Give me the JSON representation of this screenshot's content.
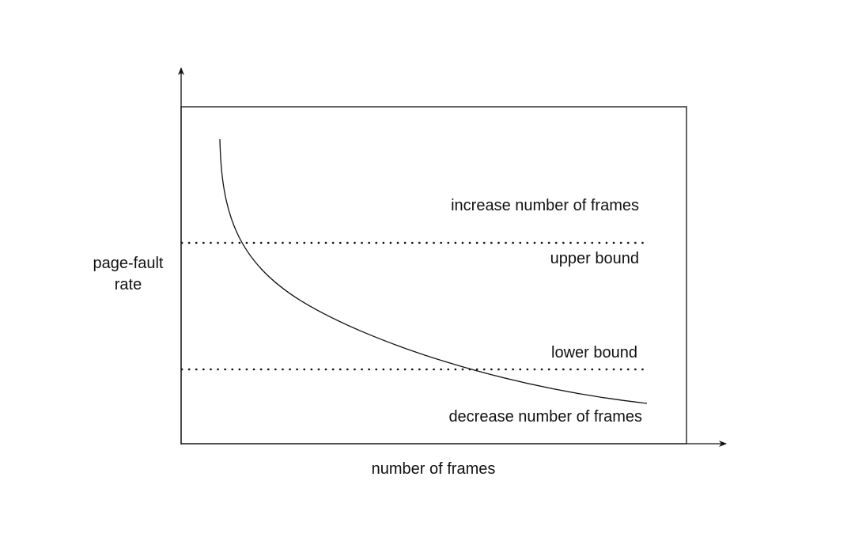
{
  "diagram": {
    "y_axis_label_lines": [
      "page-fault",
      "rate"
    ],
    "x_axis_label": "number of frames",
    "regions": {
      "above_upper": "increase number of frames",
      "upper_bound": "upper bound",
      "lower_bound": "lower bound",
      "below_lower": "decrease number of frames"
    },
    "colors": {
      "line": "#111111",
      "background": "#ffffff"
    }
  }
}
